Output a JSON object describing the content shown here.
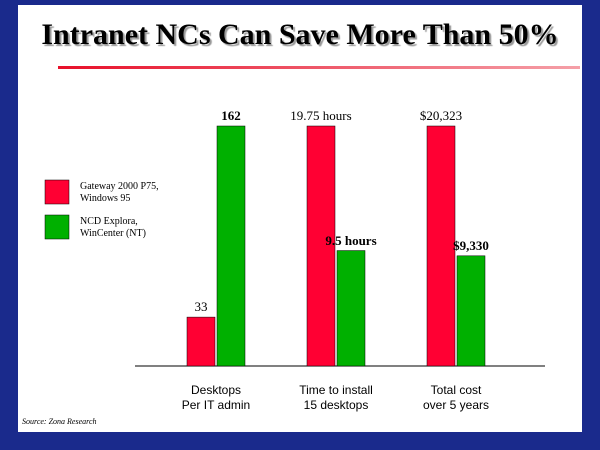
{
  "chart_data": {
    "type": "bar",
    "title": "Intranet NCs Can Save More Than 50%",
    "categories": [
      "Desktops\nPer IT admin",
      "Time to install\n15 desktops",
      "Total cost\nover 5 years"
    ],
    "series": [
      {
        "name": "Gateway 2000 P75,\nWindows 95",
        "color": "#ff0033",
        "values": [
          33,
          19.75,
          20323
        ],
        "value_labels": [
          "33",
          "19.75 hours",
          "$20,323"
        ]
      },
      {
        "name": "NCD Explora,\nWinCenter (NT)",
        "color": "#00b000",
        "values": [
          162,
          9.5,
          9330
        ],
        "value_labels": [
          "162",
          "9.5 hours",
          "$9,330"
        ]
      }
    ],
    "legend": "left",
    "source": "Source: Zona Research"
  }
}
